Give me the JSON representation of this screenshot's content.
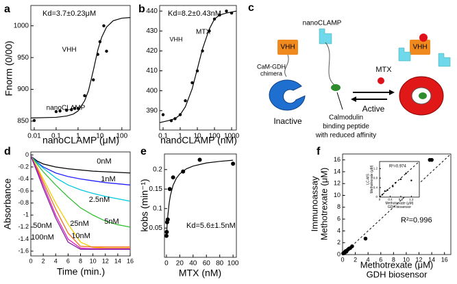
{
  "chart_data": [
    {
      "type": "scatter",
      "panel": "a",
      "xlabel": "nanoCLAMP (μM)",
      "ylabel": "Fnorm (0/00)",
      "xscale": "log",
      "xlim": [
        0.007,
        240
      ],
      "ylim": [
        836,
        1032
      ],
      "xticks": [
        0.01,
        0.1,
        1,
        10,
        100
      ],
      "yticks": [
        850,
        900,
        950,
        1000
      ],
      "annotations": [
        "Kd=3.7±0.23μM",
        "VHH",
        "nanoCLAMP"
      ],
      "series": [
        {
          "mode": "markers",
          "color": "#000000",
          "x": [
            0.01,
            0.1,
            0.15,
            0.3,
            0.5,
            0.7,
            1,
            2,
            5,
            8,
            10,
            15,
            20
          ],
          "values": [
            851,
            865,
            866,
            867,
            868,
            870,
            870,
            890,
            915,
            955,
            975,
            1000,
            960
          ]
        },
        {
          "mode": "line",
          "color": "#000000",
          "x": [
            0.007,
            0.1,
            0.3,
            0.6,
            1,
            2,
            3,
            5,
            8,
            12,
            20,
            40,
            100,
            240
          ],
          "values": [
            855,
            856,
            858,
            861,
            866,
            882,
            898,
            930,
            962,
            982,
            998,
            1008,
            1012,
            1013
          ]
        }
      ]
    },
    {
      "type": "scatter",
      "panel": "b",
      "xlabel": "nanoCLAMP (nM)",
      "xscale": "log",
      "xlim": [
        0.063,
        1900
      ],
      "ylim": [
        380.3,
        442.8
      ],
      "xticks": [
        0.1,
        1,
        10,
        100,
        1000
      ],
      "yticks": [
        390,
        400,
        410,
        420,
        430,
        440
      ],
      "annotations": [
        "Kd=8.2±0.43nM",
        "VHH",
        "MTX"
      ],
      "series": [
        {
          "mode": "markers",
          "color": "#000000",
          "x": [
            0.1,
            0.3,
            0.5,
            1,
            2,
            5,
            10,
            20,
            50,
            100,
            200,
            500,
            1000
          ],
          "values": [
            388,
            385,
            386,
            388,
            395,
            404,
            410,
            420,
            430,
            436,
            438,
            440,
            439
          ]
        },
        {
          "mode": "line",
          "color": "#000000",
          "x": [
            0.063,
            0.2,
            0.5,
            1,
            2,
            5,
            10,
            20,
            50,
            100,
            200,
            500,
            1900
          ],
          "values": [
            384,
            385,
            386,
            388,
            392,
            401,
            411,
            421,
            431,
            436,
            438,
            439,
            440
          ]
        }
      ]
    },
    {
      "type": "line",
      "panel": "d",
      "xlabel": "Time (min.)",
      "ylabel": "Absorbance",
      "xlim": [
        0,
        16
      ],
      "ylim": [
        -1.68,
        0.05
      ],
      "xticks": [
        0,
        2,
        4,
        6,
        8,
        10,
        12,
        14,
        16
      ],
      "yticks": [
        0,
        -0.2,
        -0.4,
        -0.6,
        -0.8,
        -1,
        -1.2,
        -1.4,
        -1.6
      ],
      "series": [
        {
          "name": "0nM",
          "color": "#000000",
          "x": [
            0,
            1,
            2,
            4,
            6,
            8,
            10,
            12,
            14,
            16
          ],
          "values": [
            -0.02,
            -0.1,
            -0.15,
            -0.2,
            -0.23,
            -0.25,
            -0.27,
            -0.28,
            -0.29,
            -0.3
          ]
        },
        {
          "name": "1nM",
          "color": "#1f1fff",
          "x": [
            0,
            1,
            2,
            4,
            6,
            8,
            10,
            12,
            14,
            16
          ],
          "values": [
            -0.02,
            -0.12,
            -0.2,
            -0.3,
            -0.36,
            -0.4,
            -0.43,
            -0.46,
            -0.48,
            -0.5
          ]
        },
        {
          "name": "2.5nM",
          "color": "#00c8e0",
          "x": [
            0,
            1,
            2,
            4,
            6,
            8,
            10,
            12,
            14,
            16
          ],
          "values": [
            -0.02,
            -0.13,
            -0.22,
            -0.38,
            -0.5,
            -0.58,
            -0.64,
            -0.69,
            -0.73,
            -0.77
          ]
        },
        {
          "name": "5nM",
          "color": "#33c033",
          "x": [
            0,
            1,
            2,
            4,
            6,
            8,
            10,
            12,
            14,
            16
          ],
          "values": [
            -0.02,
            -0.15,
            -0.28,
            -0.5,
            -0.7,
            -0.88,
            -1.0,
            -1.1,
            -1.16,
            -1.2
          ]
        },
        {
          "name": "10nM",
          "color": "#f0d000",
          "x": [
            0,
            1,
            2,
            4,
            6,
            8,
            10,
            12,
            14,
            16
          ],
          "values": [
            -0.02,
            -0.2,
            -0.4,
            -0.8,
            -1.15,
            -1.45,
            -1.54,
            -1.55,
            -1.55,
            -1.55
          ]
        },
        {
          "name": "25nM",
          "color": "#f07020",
          "x": [
            0,
            1,
            2,
            4,
            6,
            8,
            10,
            12,
            14,
            16
          ],
          "values": [
            -0.02,
            -0.22,
            -0.45,
            -0.9,
            -1.3,
            -1.52,
            -1.53,
            -1.53,
            -1.53,
            -1.53
          ]
        },
        {
          "name": "50nM",
          "color": "#e020c0",
          "x": [
            0,
            1,
            2,
            4,
            6,
            8,
            10,
            12,
            14,
            16
          ],
          "values": [
            -0.02,
            -0.25,
            -0.5,
            -1.0,
            -1.4,
            -1.55,
            -1.56,
            -1.56,
            -1.56,
            -1.56
          ]
        },
        {
          "name": "100nM",
          "color": "#8020a0",
          "x": [
            0,
            1,
            2,
            4,
            6,
            8,
            10,
            12,
            14,
            16
          ],
          "values": [
            -0.02,
            -0.28,
            -0.55,
            -1.05,
            -1.45,
            -1.57,
            -1.57,
            -1.57,
            -1.57,
            -1.57
          ]
        }
      ]
    },
    {
      "type": "scatter",
      "panel": "e",
      "xlabel": "MTX (nM)",
      "ylabel": "kobs (min⁻¹)",
      "xlim": [
        -3,
        105
      ],
      "ylim": [
        -0.025,
        0.24
      ],
      "xticks": [
        0,
        20,
        40,
        60,
        80,
        100
      ],
      "yticks": [
        0.05,
        0.1,
        0.15,
        0.2
      ],
      "annotations": [
        "Kd=5.6±1.5nM"
      ],
      "series": [
        {
          "mode": "markers",
          "color": "#000000",
          "x": [
            0,
            0.5,
            1,
            2,
            5,
            10,
            25,
            50,
            100
          ],
          "values": [
            0.03,
            0.04,
            0.065,
            0.072,
            0.15,
            0.18,
            0.195,
            0.225,
            0.215
          ]
        },
        {
          "mode": "line",
          "color": "#000000",
          "x": [
            0,
            1,
            2,
            4,
            6,
            10,
            15,
            20,
            30,
            40,
            60,
            80,
            100
          ],
          "values": [
            0.025,
            0.057,
            0.08,
            0.113,
            0.134,
            0.16,
            0.178,
            0.189,
            0.202,
            0.209,
            0.217,
            0.221,
            0.224
          ]
        }
      ]
    },
    {
      "type": "scatter",
      "panel": "f",
      "xlabel": [
        "Methotrexate (μM)",
        "GDH biosensor"
      ],
      "ylabel": [
        "Immunoassay",
        "Methotrexate (μM)"
      ],
      "xlim": [
        0,
        17
      ],
      "ylim": [
        0,
        17
      ],
      "xticks": [
        0,
        2,
        4,
        6,
        8,
        10,
        12,
        14,
        16
      ],
      "yticks": [
        0,
        2,
        4,
        6,
        8,
        10,
        12,
        14,
        16
      ],
      "diagonal": true,
      "annotations": [
        "R²=0.996"
      ],
      "series": [
        {
          "mode": "markers",
          "color": "#000000",
          "x": [
            0.1,
            0.2,
            0.3,
            0.4,
            0.5,
            0.6,
            0.8,
            1,
            1.2,
            1.5,
            3.6,
            13.7,
            14
          ],
          "values": [
            0.2,
            0.3,
            0.25,
            0.5,
            0.6,
            0.5,
            0.8,
            1.0,
            1.1,
            1.4,
            2.7,
            16,
            16
          ]
        }
      ]
    },
    {
      "type": "scatter",
      "xlabel": [
        "Methotrexate (μM)",
        "GDH biosensor"
      ],
      "ylabel": [
        "LC-MS",
        "Methotrexate (μM)"
      ],
      "xlim": [
        0,
        1.5
      ],
      "ylim": [
        0,
        1.5
      ],
      "xticks": [
        0,
        0.4,
        0.8,
        1.2
      ],
      "yticks": [
        0,
        0.4,
        0.8,
        1.2
      ],
      "diagonal": true,
      "annotations": [
        "R²=0.974"
      ],
      "series": [
        {
          "mode": "markers",
          "color": "#000000",
          "x": [
            0.1,
            0.2,
            0.3,
            0.5,
            0.6,
            0.8,
            1.0,
            1.2
          ],
          "values": [
            0.1,
            0.25,
            0.3,
            0.45,
            0.6,
            0.75,
            1.0,
            0.7
          ]
        }
      ]
    }
  ],
  "diagram": {
    "panel": "c",
    "labels": [
      "nanoCLAMP",
      "VHH",
      "CaM-GDH",
      "chimera",
      "Inactive",
      "MTX",
      "Active",
      "VHH"
    ],
    "note": [
      "Calmodulin",
      "binding peptide",
      "with reduced affinity"
    ]
  }
}
